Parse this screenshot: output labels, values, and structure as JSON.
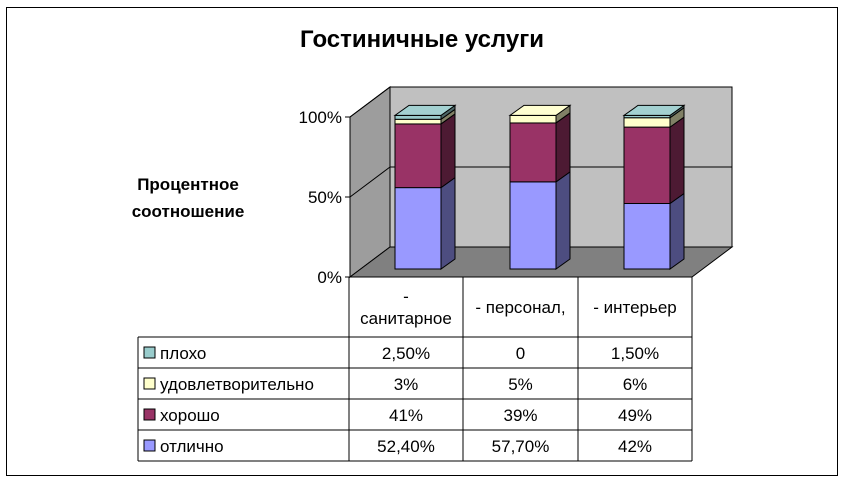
{
  "chart_data": {
    "type": "bar",
    "stacked": "percent",
    "title": "Гостиничные услуги",
    "ylabel_lines": [
      "Процентное",
      "соотношение"
    ],
    "y_ticks": [
      "100%",
      "50%",
      "0%"
    ],
    "ylim": [
      0,
      100
    ],
    "categories": [
      "- санитарное",
      "- персонал,",
      "- интерьер"
    ],
    "category_lines": [
      [
        "-",
        "санитарное"
      ],
      [
        "- персонал,"
      ],
      [
        "- интерьер"
      ]
    ],
    "series": [
      {
        "name": "плохо",
        "color": "#99cccc",
        "values": [
          2.5,
          0,
          1.5
        ],
        "labels": [
          "2,50%",
          "0",
          "1,50%"
        ]
      },
      {
        "name": "удовлетворительно",
        "color": "#ffffcc",
        "values": [
          3,
          5,
          6
        ],
        "labels": [
          "3%",
          "5%",
          "6%"
        ]
      },
      {
        "name": "хорошо",
        "color": "#993366",
        "values": [
          41,
          39,
          49
        ],
        "labels": [
          "41%",
          "39%",
          "49%"
        ]
      },
      {
        "name": "отлично",
        "color": "#9999ff",
        "values": [
          52.4,
          57.7,
          42
        ],
        "labels": [
          "52,40%",
          "57,70%",
          "42%"
        ]
      }
    ],
    "wall_color": "#c0c0c0",
    "floor_color": "#808080",
    "grid": true,
    "legend": "table"
  }
}
